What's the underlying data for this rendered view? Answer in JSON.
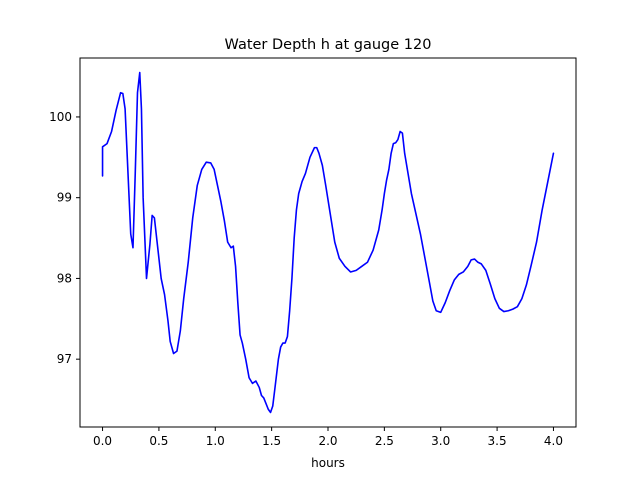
{
  "chart_data": {
    "type": "line",
    "title": "Water Depth h at gauge 120",
    "xlabel": "hours",
    "ylabel": "",
    "xlim": [
      -0.2,
      4.2
    ],
    "ylim": [
      96.16,
      100.73
    ],
    "xticks": [
      0.0,
      0.5,
      1.0,
      1.5,
      2.0,
      2.5,
      3.0,
      3.5,
      4.0
    ],
    "xtick_labels": [
      "0.0",
      "0.5",
      "1.0",
      "1.5",
      "2.0",
      "2.5",
      "3.0",
      "3.5",
      "4.0"
    ],
    "yticks": [
      97,
      98,
      99,
      100
    ],
    "ytick_labels": [
      "97",
      "98",
      "99",
      "100"
    ],
    "grid": false,
    "series": [
      {
        "color": "#0000ff",
        "x": [
          0.0,
          0.0,
          0.04,
          0.08,
          0.12,
          0.16,
          0.18,
          0.2,
          0.22,
          0.25,
          0.27,
          0.29,
          0.31,
          0.33,
          0.345,
          0.36,
          0.39,
          0.42,
          0.44,
          0.46,
          0.48,
          0.5,
          0.52,
          0.55,
          0.58,
          0.6,
          0.63,
          0.66,
          0.69,
          0.72,
          0.76,
          0.8,
          0.84,
          0.88,
          0.92,
          0.96,
          0.99,
          1.02,
          1.05,
          1.08,
          1.11,
          1.14,
          1.16,
          1.18,
          1.2,
          1.22,
          1.24,
          1.27,
          1.3,
          1.33,
          1.36,
          1.39,
          1.41,
          1.43,
          1.45,
          1.47,
          1.49,
          1.51,
          1.53,
          1.56,
          1.58,
          1.6,
          1.62,
          1.64,
          1.66,
          1.68,
          1.7,
          1.72,
          1.74,
          1.77,
          1.8,
          1.84,
          1.88,
          1.9,
          1.92,
          1.95,
          1.98,
          2.02,
          2.06,
          2.1,
          2.15,
          2.2,
          2.25,
          2.3,
          2.35,
          2.4,
          2.45,
          2.48,
          2.5,
          2.52,
          2.54,
          2.56,
          2.58,
          2.6,
          2.62,
          2.64,
          2.66,
          2.68,
          2.71,
          2.74,
          2.78,
          2.82,
          2.86,
          2.9,
          2.93,
          2.96,
          3.0,
          3.04,
          3.08,
          3.12,
          3.16,
          3.2,
          3.24,
          3.27,
          3.3,
          3.33,
          3.36,
          3.4,
          3.44,
          3.48,
          3.52,
          3.56,
          3.6,
          3.64,
          3.68,
          3.72,
          3.76,
          3.8,
          3.85,
          3.9,
          3.95,
          4.0
        ],
        "y": [
          99.27,
          99.63,
          99.67,
          99.82,
          100.08,
          100.3,
          100.29,
          100.1,
          99.48,
          98.55,
          98.38,
          99.3,
          100.3,
          100.55,
          100.1,
          99.0,
          98.0,
          98.42,
          98.78,
          98.75,
          98.5,
          98.25,
          98.0,
          97.8,
          97.48,
          97.22,
          97.07,
          97.1,
          97.35,
          97.75,
          98.2,
          98.75,
          99.15,
          99.35,
          99.44,
          99.43,
          99.35,
          99.15,
          98.95,
          98.72,
          98.45,
          98.38,
          98.4,
          98.15,
          97.7,
          97.3,
          97.2,
          97.0,
          96.77,
          96.7,
          96.73,
          96.65,
          96.55,
          96.52,
          96.45,
          96.38,
          96.34,
          96.42,
          96.65,
          97.0,
          97.15,
          97.2,
          97.2,
          97.28,
          97.6,
          98.0,
          98.5,
          98.85,
          99.05,
          99.2,
          99.3,
          99.5,
          99.62,
          99.62,
          99.55,
          99.4,
          99.15,
          98.8,
          98.45,
          98.25,
          98.15,
          98.08,
          98.1,
          98.15,
          98.2,
          98.35,
          98.6,
          98.85,
          99.05,
          99.22,
          99.35,
          99.55,
          99.67,
          99.68,
          99.72,
          99.82,
          99.8,
          99.55,
          99.3,
          99.05,
          98.8,
          98.55,
          98.25,
          97.95,
          97.72,
          97.6,
          97.58,
          97.7,
          97.85,
          97.98,
          98.05,
          98.08,
          98.15,
          98.23,
          98.24,
          98.2,
          98.18,
          98.1,
          97.93,
          97.75,
          97.63,
          97.59,
          97.6,
          97.62,
          97.65,
          97.75,
          97.92,
          98.15,
          98.45,
          98.85,
          99.2,
          99.55
        ]
      }
    ]
  }
}
